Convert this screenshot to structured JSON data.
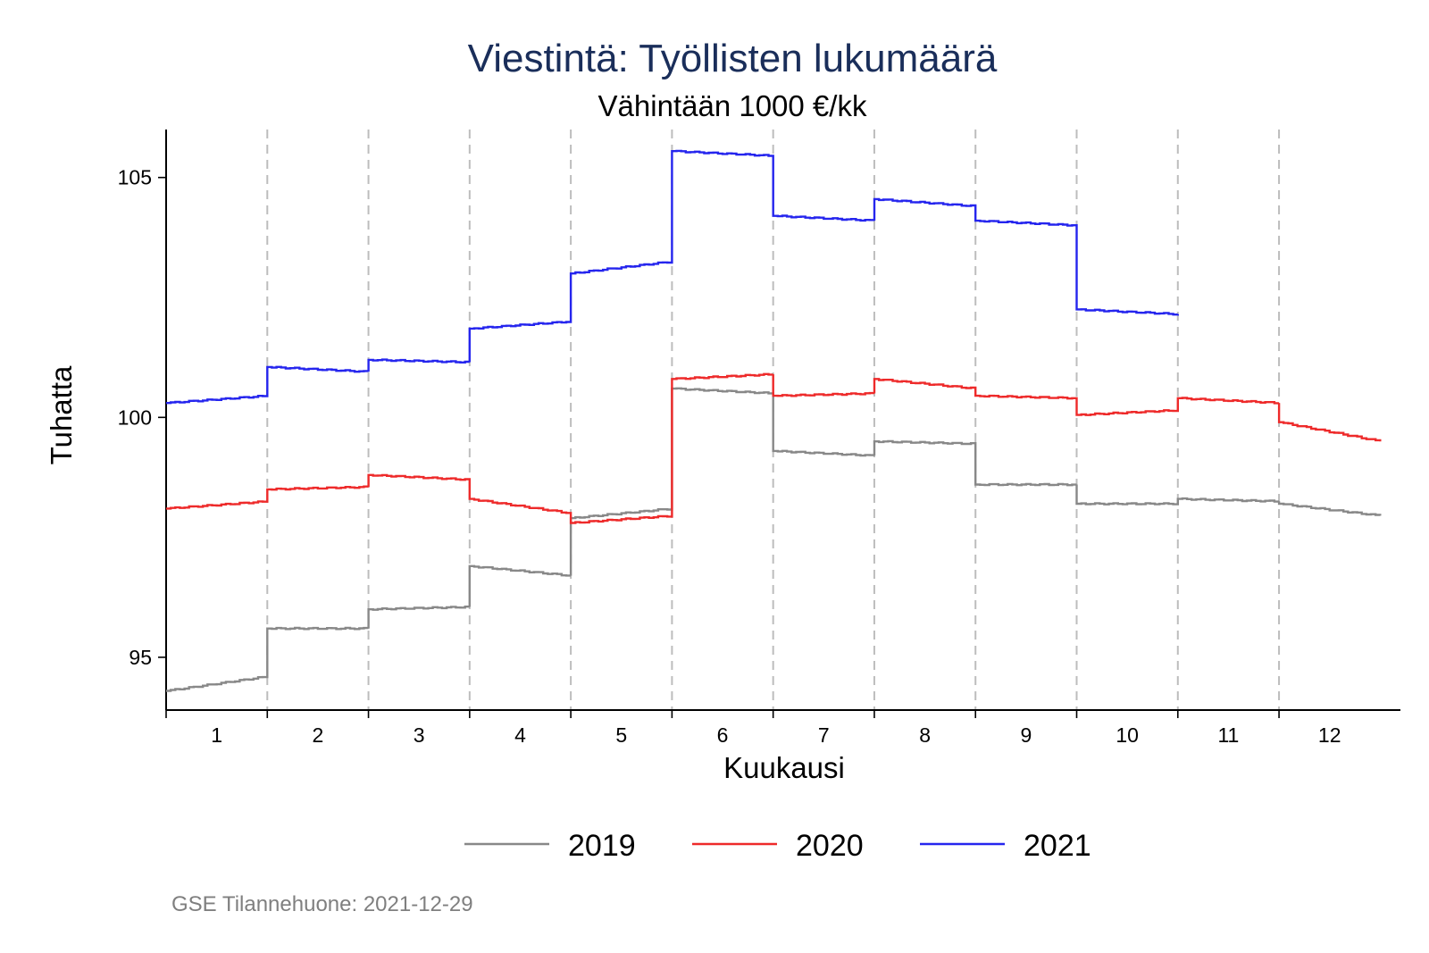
{
  "chart_data": {
    "type": "line",
    "title": "Viestintä: Työllisten lukumäärä",
    "subtitle": "Vähintään 1000 €/kk",
    "xlabel": "Kuukausi",
    "ylabel": "Tuhatta",
    "xlim": [
      0.5,
      12.7
    ],
    "ylim": [
      93.9,
      106.0
    ],
    "x_ticks": [
      1,
      2,
      3,
      4,
      5,
      6,
      7,
      8,
      9,
      10,
      11,
      12
    ],
    "y_ticks": [
      95,
      100,
      105
    ],
    "grid": "vertical dashed month dividers",
    "legend_position": "bottom",
    "series": [
      {
        "name": "2019",
        "color": "#888888",
        "months": [
          {
            "month": 1,
            "start": 94.3,
            "end": 94.6
          },
          {
            "month": 2,
            "start": 95.6,
            "end": 95.6
          },
          {
            "month": 3,
            "start": 96.0,
            "end": 96.05
          },
          {
            "month": 4,
            "start": 96.9,
            "end": 96.7
          },
          {
            "month": 5,
            "start": 97.9,
            "end": 98.1
          },
          {
            "month": 6,
            "start": 100.6,
            "end": 100.5
          },
          {
            "month": 7,
            "start": 99.3,
            "end": 99.2
          },
          {
            "month": 8,
            "start": 99.5,
            "end": 99.45
          },
          {
            "month": 9,
            "start": 98.6,
            "end": 98.6
          },
          {
            "month": 10,
            "start": 98.2,
            "end": 98.2
          },
          {
            "month": 11,
            "start": 98.3,
            "end": 98.25
          },
          {
            "month": 12,
            "start": 98.2,
            "end": 97.95
          }
        ]
      },
      {
        "name": "2020",
        "color": "#ee2a2a",
        "months": [
          {
            "month": 1,
            "start": 98.1,
            "end": 98.25
          },
          {
            "month": 2,
            "start": 98.5,
            "end": 98.55
          },
          {
            "month": 3,
            "start": 98.8,
            "end": 98.7
          },
          {
            "month": 4,
            "start": 98.3,
            "end": 98.0
          },
          {
            "month": 5,
            "start": 97.8,
            "end": 97.95
          },
          {
            "month": 6,
            "start": 100.8,
            "end": 100.9
          },
          {
            "month": 7,
            "start": 100.45,
            "end": 100.5
          },
          {
            "month": 8,
            "start": 100.8,
            "end": 100.6
          },
          {
            "month": 9,
            "start": 100.45,
            "end": 100.4
          },
          {
            "month": 10,
            "start": 100.05,
            "end": 100.15
          },
          {
            "month": 11,
            "start": 100.4,
            "end": 100.3
          },
          {
            "month": 12,
            "start": 99.9,
            "end": 99.5
          }
        ]
      },
      {
        "name": "2021",
        "color": "#2525ee",
        "months": [
          {
            "month": 1,
            "start": 100.3,
            "end": 100.45
          },
          {
            "month": 2,
            "start": 101.05,
            "end": 100.95
          },
          {
            "month": 3,
            "start": 101.2,
            "end": 101.15
          },
          {
            "month": 4,
            "start": 101.85,
            "end": 102.0
          },
          {
            "month": 5,
            "start": 103.0,
            "end": 103.25
          },
          {
            "month": 6,
            "start": 105.55,
            "end": 105.45
          },
          {
            "month": 7,
            "start": 104.2,
            "end": 104.1
          },
          {
            "month": 8,
            "start": 104.55,
            "end": 104.4
          },
          {
            "month": 9,
            "start": 104.1,
            "end": 104.0
          },
          {
            "month": 10,
            "start": 102.25,
            "end": 102.15
          }
        ]
      }
    ]
  },
  "note": "GSE Tilannehuone: 2021-12-29"
}
